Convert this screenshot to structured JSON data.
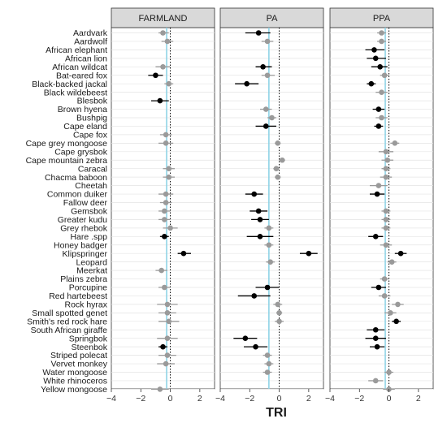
{
  "chart_data": {
    "type": "dot-whisker",
    "xlabel": "TRI",
    "xlim": [
      -4,
      3
    ],
    "xticks": [
      -4,
      -2,
      0,
      2
    ],
    "panels": [
      "FARMLAND",
      "PA",
      "PPA"
    ],
    "panel_mean_lines": [
      -0.25,
      -0.7,
      -0.25
    ],
    "colors": {
      "significant": "#000000",
      "nonsignificant": "#9a9a9a",
      "mean_line": "#8fd3e6",
      "zero_line": "#000000",
      "strip_bg": "#d9d9d9"
    },
    "categories": [
      "Aardvark",
      "Aardwolf",
      "African elephant",
      "African lion",
      "African wildcat",
      "Bat-eared fox",
      "Black-backed jackal",
      "Black wildebeest",
      "Blesbok",
      "Brown hyena",
      "Bushpig",
      "Cape eland",
      "Cape fox",
      "Cape grey mongoose",
      "Cape grysbok",
      "Cape mountain zebra",
      "Caracal",
      "Chacma baboon",
      "Cheetah",
      "Common duiker",
      "Fallow deer",
      "Gemsbok",
      "Greater kudu",
      "Grey rhebok",
      "Hare .spp",
      "Honey badger",
      "Klipspringer",
      "Leopard",
      "Meerkat",
      "Plains zebra",
      "Porcupine",
      "Red hartebeest",
      "Rock hyrax",
      "Small spotted genet",
      "Smith's red rock hare",
      "South African giraffe",
      "Springbok",
      "Steenbok",
      "Striped polecat",
      "Vervet monkey",
      "Water mongoose",
      "White rhinoceros",
      "Yellow mongoose"
    ],
    "series": [
      {
        "name": "FARMLAND",
        "values": [
          -0.5,
          -0.2,
          null,
          null,
          -0.5,
          -1.0,
          -0.1,
          null,
          -0.7,
          null,
          null,
          null,
          -0.3,
          -0.3,
          null,
          null,
          -0.1,
          -0.1,
          null,
          -0.3,
          -0.3,
          -0.4,
          -0.4,
          0.0,
          -0.4,
          null,
          0.9,
          null,
          -0.6,
          null,
          -0.4,
          null,
          -0.2,
          -0.2,
          -0.1,
          null,
          -0.2,
          -0.5,
          -0.2,
          -0.3,
          null,
          null,
          -0.7
        ],
        "ci_low": [
          -0.8,
          -0.6,
          null,
          null,
          -1.0,
          -1.5,
          -0.4,
          null,
          -1.3,
          null,
          null,
          null,
          -0.7,
          -0.8,
          null,
          null,
          -0.5,
          -0.5,
          null,
          -0.8,
          -0.7,
          -0.8,
          -0.8,
          -0.5,
          -0.7,
          null,
          0.5,
          null,
          -1.0,
          null,
          -0.8,
          null,
          -0.9,
          -0.8,
          -0.8,
          null,
          -0.9,
          -0.8,
          -0.8,
          -0.9,
          null,
          null,
          -1.3
        ],
        "ci_high": [
          -0.1,
          0.2,
          null,
          null,
          0.0,
          -0.5,
          0.2,
          null,
          -0.1,
          null,
          null,
          null,
          0.1,
          0.2,
          null,
          null,
          0.3,
          0.3,
          null,
          0.2,
          0.1,
          0.0,
          0.0,
          0.5,
          -0.1,
          null,
          1.4,
          null,
          -0.2,
          null,
          0.0,
          null,
          0.5,
          0.4,
          0.6,
          null,
          0.5,
          -0.2,
          0.4,
          0.3,
          null,
          null,
          -0.1
        ],
        "significant": [
          false,
          false,
          false,
          false,
          false,
          true,
          false,
          false,
          true,
          false,
          false,
          false,
          false,
          false,
          false,
          false,
          false,
          false,
          false,
          false,
          false,
          false,
          false,
          false,
          true,
          false,
          true,
          false,
          false,
          false,
          false,
          false,
          false,
          false,
          false,
          false,
          false,
          true,
          false,
          false,
          false,
          false,
          false
        ]
      },
      {
        "name": "PA",
        "values": [
          -1.4,
          -0.8,
          null,
          null,
          -1.1,
          -0.8,
          -2.2,
          null,
          null,
          -0.9,
          -0.5,
          -0.9,
          null,
          -0.1,
          null,
          0.2,
          -0.2,
          -0.1,
          null,
          -1.7,
          null,
          -1.4,
          -1.3,
          -0.7,
          -1.3,
          -0.7,
          2.0,
          -0.6,
          null,
          null,
          -0.8,
          -1.7,
          -0.1,
          0.0,
          0.0,
          null,
          -2.3,
          -1.6,
          -0.8,
          -0.7,
          -0.8,
          null,
          null
        ],
        "ci_low": [
          -2.3,
          -1.2,
          null,
          null,
          -1.6,
          -1.2,
          -3.0,
          null,
          null,
          -1.3,
          -0.8,
          -1.6,
          null,
          -0.3,
          null,
          0.0,
          -0.4,
          -0.3,
          null,
          -2.3,
          null,
          -2.0,
          -1.9,
          -1.0,
          -2.2,
          -1.0,
          1.4,
          -0.9,
          null,
          null,
          -1.6,
          -2.8,
          -0.4,
          -0.2,
          -0.3,
          null,
          -3.1,
          -2.4,
          -1.1,
          -1.0,
          -1.1,
          null,
          null
        ],
        "ci_high": [
          -0.6,
          -0.4,
          null,
          null,
          -0.5,
          -0.3,
          -1.4,
          null,
          null,
          -0.5,
          -0.2,
          -0.2,
          null,
          0.1,
          null,
          0.4,
          0.0,
          0.1,
          null,
          -1.1,
          null,
          -0.8,
          -0.7,
          -0.4,
          -0.4,
          -0.4,
          2.6,
          -0.3,
          null,
          null,
          0.0,
          -0.6,
          0.2,
          0.2,
          0.3,
          null,
          -1.5,
          -0.8,
          -0.5,
          -0.4,
          -0.5,
          null,
          null
        ],
        "significant": [
          true,
          false,
          false,
          false,
          true,
          false,
          true,
          false,
          false,
          false,
          false,
          true,
          false,
          false,
          false,
          false,
          false,
          false,
          false,
          true,
          false,
          true,
          true,
          false,
          true,
          false,
          true,
          false,
          false,
          false,
          true,
          true,
          false,
          false,
          false,
          false,
          true,
          true,
          false,
          false,
          false,
          false,
          false
        ]
      },
      {
        "name": "PPA",
        "values": [
          -0.5,
          -0.5,
          -1.0,
          -0.9,
          -0.6,
          -0.3,
          -1.2,
          -0.5,
          null,
          -0.7,
          -0.5,
          -0.7,
          null,
          0.4,
          -0.2,
          -0.1,
          -0.2,
          -0.2,
          -0.7,
          -0.8,
          null,
          -0.2,
          -0.2,
          -0.2,
          -0.9,
          -0.2,
          0.8,
          0.2,
          null,
          -0.3,
          -0.7,
          -0.3,
          0.6,
          0.1,
          0.5,
          -0.9,
          -0.9,
          -0.8,
          null,
          null,
          0.0,
          -0.9,
          0.0
        ],
        "ci_low": [
          -0.8,
          -0.8,
          -1.6,
          -1.5,
          -1.2,
          -0.6,
          -1.5,
          -0.9,
          null,
          -1.1,
          -0.9,
          -1.0,
          null,
          0.1,
          -0.7,
          -0.5,
          -0.5,
          -0.6,
          -1.3,
          -1.3,
          null,
          -0.5,
          -0.5,
          -0.5,
          -1.4,
          -0.6,
          0.4,
          -0.1,
          null,
          -0.6,
          -1.2,
          -0.7,
          0.2,
          -0.3,
          0.2,
          -1.5,
          -1.6,
          -1.3,
          null,
          null,
          -0.3,
          -1.4,
          -0.4
        ],
        "ci_high": [
          -0.2,
          -0.2,
          -0.3,
          -0.2,
          -0.1,
          0.0,
          -0.9,
          -0.1,
          null,
          -0.3,
          -0.1,
          -0.4,
          null,
          0.7,
          0.3,
          0.3,
          0.1,
          0.2,
          -0.1,
          -0.3,
          null,
          0.1,
          0.1,
          0.1,
          -0.4,
          0.2,
          1.2,
          0.5,
          null,
          0.0,
          -0.2,
          0.1,
          1.0,
          0.5,
          0.8,
          -0.3,
          -0.2,
          -0.3,
          null,
          null,
          0.3,
          -0.4,
          0.4
        ],
        "significant": [
          false,
          false,
          true,
          true,
          true,
          false,
          true,
          false,
          false,
          true,
          false,
          true,
          false,
          false,
          false,
          false,
          false,
          false,
          false,
          true,
          false,
          false,
          false,
          false,
          true,
          false,
          true,
          false,
          false,
          false,
          true,
          false,
          false,
          false,
          true,
          true,
          true,
          true,
          false,
          false,
          false,
          false,
          false
        ]
      }
    ]
  }
}
